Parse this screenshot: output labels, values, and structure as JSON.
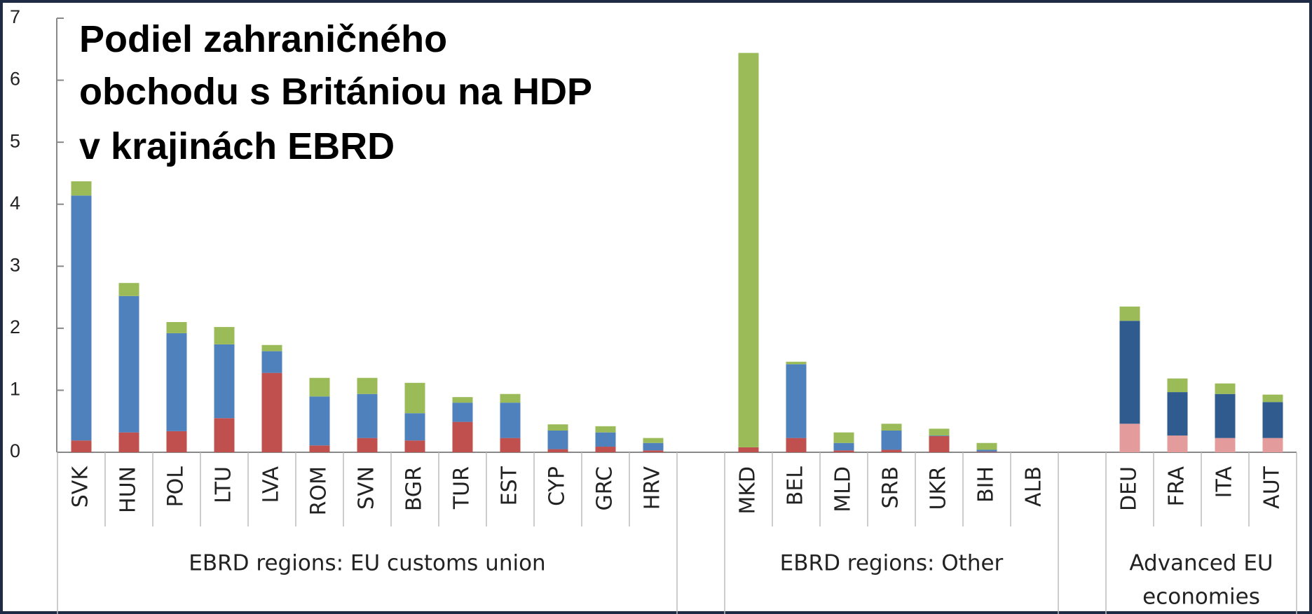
{
  "chart_data": {
    "type": "stacked_bar",
    "title": [
      "Podiel zahraničného",
      "obchodu s Britániou na HDP",
      "v krajinách EBRD"
    ],
    "categories": [
      "SVK",
      "HUN",
      "POL",
      "LTU",
      "LVA",
      "ROM",
      "SVN",
      "BGR",
      "TUR",
      "EST",
      "CYP",
      "GRC",
      "HRV",
      null,
      "MKD",
      "BEL",
      "MLD",
      "SRB",
      "UKR",
      "BIH",
      "ALB",
      null,
      "DEU",
      "FRA",
      "ITA",
      "AUT"
    ],
    "groups": [
      {
        "label": [
          "EBRD regions: EU customs union"
        ],
        "start": 0,
        "end": 12
      },
      {
        "label": [
          "EBRD regions: Other"
        ],
        "start": 14,
        "end": 20
      },
      {
        "label": [
          "Advanced EU",
          "economies"
        ],
        "start": 22,
        "end": 25
      }
    ],
    "series": [
      {
        "color": "#c0504d",
        "values": [
          0.19,
          0.32,
          0.34,
          0.55,
          1.28,
          0.11,
          0.23,
          0.19,
          0.49,
          0.23,
          0.05,
          0.09,
          0.03,
          null,
          0.08,
          0.23,
          0.03,
          0.04,
          0.26,
          0.01,
          0,
          null,
          null,
          null,
          null,
          null
        ]
      },
      {
        "color": "#e39b9b",
        "values": [
          null,
          null,
          null,
          null,
          null,
          null,
          null,
          null,
          null,
          null,
          null,
          null,
          null,
          null,
          null,
          null,
          null,
          null,
          null,
          null,
          null,
          null,
          0.46,
          0.27,
          0.23,
          0.23
        ]
      },
      {
        "color": "#4f81bd",
        "values": [
          3.95,
          2.2,
          1.58,
          1.19,
          0.35,
          0.79,
          0.71,
          0.44,
          0.31,
          0.57,
          0.3,
          0.23,
          0.12,
          null,
          0,
          1.19,
          0.12,
          0.31,
          0.01,
          0.03,
          0,
          null,
          null,
          null,
          null,
          null
        ]
      },
      {
        "color": "#2f5b8f",
        "values": [
          null,
          null,
          null,
          null,
          null,
          null,
          null,
          null,
          null,
          null,
          null,
          null,
          null,
          null,
          null,
          null,
          null,
          null,
          null,
          null,
          null,
          null,
          1.66,
          0.7,
          0.71,
          0.58
        ]
      },
      {
        "color": "#9bbb59",
        "values": [
          0.23,
          0.21,
          0.18,
          0.28,
          0.1,
          0.3,
          0.26,
          0.49,
          0.09,
          0.14,
          0.1,
          0.1,
          0.08,
          null,
          6.36,
          0.04,
          0.17,
          0.11,
          0.11,
          0.11,
          0,
          null,
          0.23,
          0.22,
          0.17,
          0.12
        ]
      }
    ],
    "ylim": [
      0,
      7
    ],
    "yticks": [
      0,
      1,
      2,
      3,
      4,
      5,
      6,
      7
    ]
  }
}
